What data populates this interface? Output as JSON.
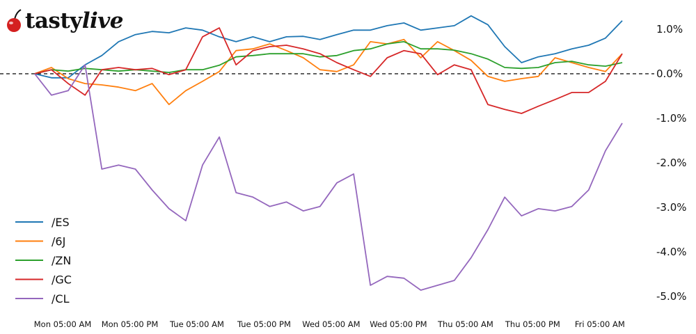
{
  "logo": {
    "text_main": "tasty",
    "text_italic": "live"
  },
  "chart_data": {
    "type": "line",
    "title": "",
    "xlabel": "",
    "ylabel": "",
    "ylim": [
      -5.3,
      1.5
    ],
    "y_ticks": [
      "1.0%",
      "0.0%",
      "-1.0%",
      "-2.0%",
      "-3.0%",
      "-4.0%",
      "-5.0%"
    ],
    "y_tick_values": [
      1,
      0,
      -1,
      -2,
      -3,
      -4,
      -5
    ],
    "x_ticks": [
      "Mon 05:00 AM",
      "Mon 05:00 PM",
      "Tue 05:00 AM",
      "Tue 05:00 PM",
      "Wed 05:00 AM",
      "Wed 05:00 PM",
      "Thu 05:00 AM",
      "Thu 05:00 PM",
      "Fri 05:00 AM"
    ],
    "x_tick_times": [
      "Mon 05:00",
      "Mon 17:00",
      "Tue 05:00",
      "Tue 17:00",
      "Wed 05:00",
      "Wed 17:00",
      "Thu 05:00",
      "Thu 17:00",
      "Fri 05:00"
    ],
    "reference_line": {
      "value": 0,
      "style": "dashed",
      "color": "#000000"
    },
    "grid": false,
    "legend_position": "bottom-left",
    "y_axis_side": "right",
    "x": [
      "Mon 00:00",
      "Mon 03:00",
      "Mon 06:00",
      "Mon 09:00",
      "Mon 12:00",
      "Mon 15:00",
      "Mon 18:00",
      "Mon 21:00",
      "Tue 00:00",
      "Tue 03:00",
      "Tue 06:00",
      "Tue 09:00",
      "Tue 12:00",
      "Tue 15:00",
      "Tue 18:00",
      "Tue 21:00",
      "Wed 00:00",
      "Wed 03:00",
      "Wed 06:00",
      "Wed 09:00",
      "Wed 12:00",
      "Wed 15:00",
      "Wed 18:00",
      "Wed 21:00",
      "Thu 00:00",
      "Thu 03:00",
      "Thu 06:00",
      "Thu 09:00",
      "Thu 12:00",
      "Thu 15:00",
      "Thu 18:00",
      "Thu 21:00",
      "Fri 00:00",
      "Fri 03:00",
      "Fri 06:00",
      "Fri 09:00"
    ],
    "series": [
      {
        "name": "/ES",
        "color": "#1f77b4",
        "values": [
          0.0,
          -0.09,
          -0.09,
          0.2,
          0.41,
          0.72,
          0.88,
          0.95,
          0.92,
          1.03,
          0.98,
          0.83,
          0.72,
          0.83,
          0.72,
          0.83,
          0.84,
          0.77,
          0.88,
          0.98,
          0.98,
          1.08,
          1.14,
          0.98,
          1.03,
          1.08,
          1.3,
          1.1,
          0.61,
          0.25,
          0.38,
          0.45,
          0.56,
          0.64,
          0.8,
          1.19
        ]
      },
      {
        "name": "/6J",
        "color": "#ff7f0e",
        "values": [
          0.0,
          0.14,
          -0.11,
          -0.22,
          -0.25,
          -0.3,
          -0.38,
          -0.22,
          -0.69,
          -0.38,
          -0.17,
          0.05,
          0.52,
          0.56,
          0.67,
          0.52,
          0.36,
          0.09,
          0.05,
          0.2,
          0.72,
          0.67,
          0.77,
          0.36,
          0.72,
          0.52,
          0.3,
          -0.06,
          -0.17,
          -0.11,
          -0.06,
          0.36,
          0.25,
          0.14,
          0.05,
          0.45
        ]
      },
      {
        "name": "/ZN",
        "color": "#2ca02c",
        "values": [
          0.0,
          0.09,
          0.06,
          0.12,
          0.09,
          0.06,
          0.09,
          0.06,
          0.03,
          0.09,
          0.09,
          0.19,
          0.38,
          0.41,
          0.45,
          0.45,
          0.45,
          0.38,
          0.41,
          0.52,
          0.56,
          0.67,
          0.72,
          0.56,
          0.56,
          0.53,
          0.45,
          0.33,
          0.14,
          0.12,
          0.14,
          0.25,
          0.28,
          0.2,
          0.17,
          0.25
        ]
      },
      {
        "name": "/GC",
        "color": "#d62728",
        "values": [
          0.0,
          0.09,
          -0.22,
          -0.48,
          0.09,
          0.14,
          0.09,
          0.12,
          -0.02,
          0.09,
          0.83,
          1.03,
          0.2,
          0.52,
          0.61,
          0.64,
          0.56,
          0.45,
          0.25,
          0.09,
          -0.06,
          0.36,
          0.52,
          0.45,
          -0.02,
          0.2,
          0.09,
          -0.69,
          -0.8,
          -0.89,
          -0.73,
          -0.58,
          -0.42,
          -0.42,
          -0.17,
          0.45
        ]
      },
      {
        "name": "/CL",
        "color": "#9467bd",
        "values": [
          0.0,
          -0.48,
          -0.38,
          0.2,
          -2.14,
          -2.05,
          -2.14,
          -2.61,
          -3.03,
          -3.3,
          -2.05,
          -1.42,
          -2.67,
          -2.77,
          -2.98,
          -2.88,
          -3.08,
          -2.98,
          -2.45,
          -2.25,
          -4.75,
          -4.55,
          -4.59,
          -4.86,
          -4.75,
          -4.64,
          -4.13,
          -3.5,
          -2.77,
          -3.19,
          -3.03,
          -3.08,
          -2.98,
          -2.61,
          -1.73,
          -1.11
        ]
      }
    ]
  }
}
